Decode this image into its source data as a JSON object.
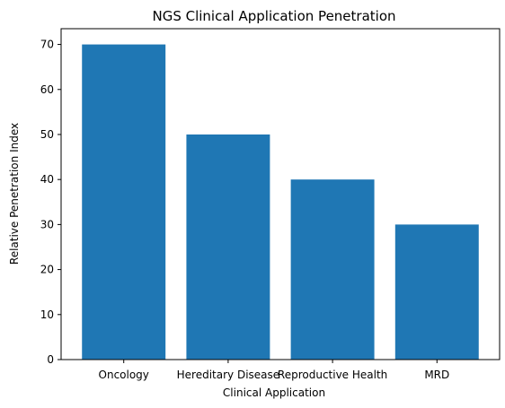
{
  "chart_data": {
    "type": "bar",
    "title": "NGS Clinical Application Penetration",
    "xlabel": "Clinical Application",
    "ylabel": "Relative Penetration Index",
    "categories": [
      "Oncology",
      "Hereditary Disease",
      "Reproductive Health",
      "MRD"
    ],
    "values": [
      70,
      50,
      40,
      30
    ],
    "ylim": [
      0,
      73.5
    ],
    "yticks": [
      0,
      10,
      20,
      30,
      40,
      50,
      60,
      70
    ],
    "bar_color": "#1f77b4",
    "grid": false,
    "legend": "none"
  }
}
